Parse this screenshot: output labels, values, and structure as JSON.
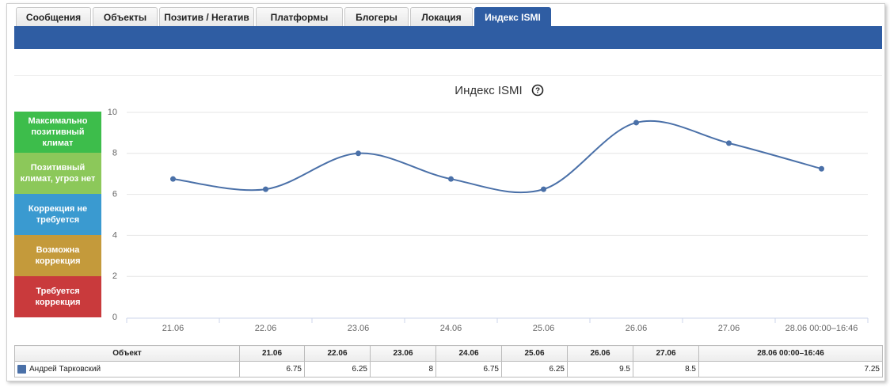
{
  "tabs": [
    "Сообщения",
    "Объекты",
    "Позитив / Негатив",
    "Платформы",
    "Блогеры",
    "Локация",
    "Индекс ISMI"
  ],
  "active_tab": 6,
  "zones": [
    {
      "label": "Максимально позитивный климат",
      "color": "#3dbd4b"
    },
    {
      "label": "Позитивный климат, угроз нет",
      "color": "#8cc85a"
    },
    {
      "label": "Коррекция не требуется",
      "color": "#3a9ad0"
    },
    {
      "label": "Возможна коррекция",
      "color": "#c49a3b"
    },
    {
      "label": "Требуется коррекция",
      "color": "#c93a3c"
    }
  ],
  "chart_data": {
    "type": "line",
    "title": "Индекс ISMI",
    "help_icon": "?",
    "categories": [
      "21.06",
      "22.06",
      "23.06",
      "24.06",
      "25.06",
      "26.06",
      "27.06",
      "28.06 00:00–16:46"
    ],
    "series": [
      {
        "name": "Андрей Тарковский",
        "color": "#4a70a8",
        "values": [
          6.75,
          6.25,
          8,
          6.75,
          6.25,
          9.5,
          8.5,
          7.25
        ]
      }
    ],
    "ylim": [
      0,
      10
    ],
    "yticks": [
      0,
      2,
      4,
      6,
      8,
      10
    ],
    "grid": true
  },
  "table": {
    "header": "Объект"
  }
}
